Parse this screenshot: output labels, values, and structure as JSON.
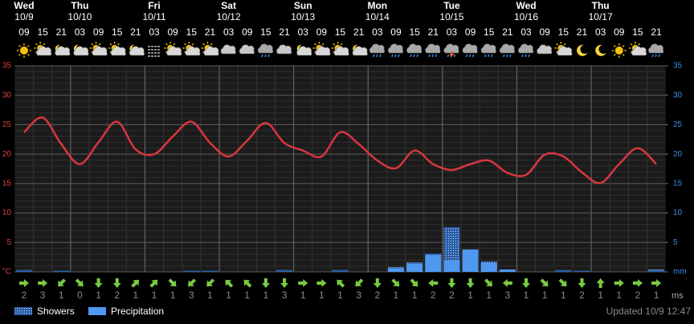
{
  "chart_data": {
    "type": "line",
    "days": [
      {
        "name": "Wed",
        "date": "10/9"
      },
      {
        "name": "Thu",
        "date": "10/10"
      },
      {
        "name": "Fri",
        "date": "10/11"
      },
      {
        "name": "Sat",
        "date": "10/12"
      },
      {
        "name": "Sun",
        "date": "10/13"
      },
      {
        "name": "Mon",
        "date": "10/14"
      },
      {
        "name": "Tue",
        "date": "10/15"
      },
      {
        "name": "Wed",
        "date": "10/16"
      },
      {
        "name": "Thu",
        "date": "10/17"
      }
    ],
    "categories": [
      "09",
      "15",
      "21",
      "03",
      "09",
      "15",
      "21",
      "03",
      "09",
      "15",
      "21",
      "03",
      "09",
      "15",
      "21",
      "03",
      "09",
      "15",
      "21",
      "03",
      "09",
      "15",
      "21",
      "03",
      "09",
      "15",
      "21",
      "03",
      "09",
      "15",
      "21",
      "03",
      "09",
      "15",
      "21"
    ],
    "temperature": {
      "color": "#d9363e",
      "values": [
        23.7,
        26.2,
        21.7,
        18.3,
        22,
        25.5,
        20.8,
        20,
        23,
        25.5,
        21.9,
        19.6,
        22.3,
        25.3,
        21.9,
        20.6,
        19.6,
        23.7,
        21.7,
        18.9,
        17.6,
        20.6,
        18.3,
        17.3,
        18.3,
        18.9,
        16.8,
        16.5,
        19.9,
        19.6,
        16.9,
        15.1,
        18.3,
        21,
        18.3
      ]
    },
    "series": [
      {
        "name": "Showers",
        "color": "#3f7fd0",
        "values": [
          0.3,
          0,
          0.2,
          0,
          0,
          0,
          0,
          0,
          0,
          0.2,
          0.2,
          0,
          0,
          0,
          0.3,
          0,
          0,
          0.3,
          0,
          0,
          0.8,
          1.6,
          3.1,
          7.6,
          0,
          1.8,
          0,
          0,
          0,
          0.3,
          0.2,
          0,
          0,
          0,
          0.4
        ]
      },
      {
        "name": "Precipitation",
        "color": "#4f98f0",
        "values": [
          0,
          0,
          0,
          0,
          0,
          0,
          0,
          0,
          0,
          0,
          0,
          0,
          0,
          0,
          0,
          0,
          0,
          0,
          0,
          0,
          0.6,
          1.4,
          2.9,
          1.9,
          3.8,
          1.5,
          0.4,
          0,
          0,
          0,
          0,
          0,
          0,
          0,
          0
        ]
      }
    ],
    "ylim": [
      0,
      35
    ],
    "yticks": [
      {
        "value": 0,
        "label": "°C"
      },
      5,
      10,
      15,
      20,
      25,
      30,
      35
    ],
    "y2lim": [
      0,
      35
    ],
    "y2ticks": [
      {
        "value": 0,
        "label": "mm"
      },
      5,
      10,
      15,
      20,
      25,
      30,
      35
    ],
    "grid": true,
    "wind": {
      "unit": "ms",
      "color": "#7ac943",
      "speeds": [
        2,
        3,
        1,
        0,
        1,
        2,
        1,
        1,
        1,
        3,
        1,
        1,
        1,
        1,
        3,
        1,
        1,
        1,
        3,
        2,
        1,
        1,
        2,
        2,
        1,
        1,
        3,
        1,
        1,
        1,
        2,
        1,
        1,
        2,
        1
      ],
      "directions": [
        90,
        90,
        225,
        135,
        180,
        180,
        45,
        45,
        135,
        225,
        225,
        315,
        315,
        180,
        180,
        90,
        90,
        315,
        225,
        180,
        135,
        135,
        270,
        180,
        180,
        135,
        270,
        180,
        135,
        135,
        180,
        0,
        90,
        90,
        90
      ]
    },
    "updated": "Updated 10/9 12:47"
  }
}
